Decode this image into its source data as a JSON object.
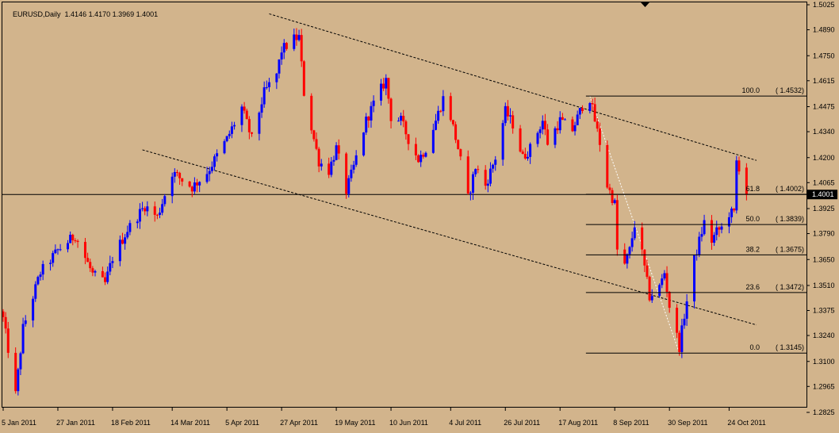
{
  "title": {
    "symbol": "EURUSD,Daily",
    "ohlc": "1.4146 1.4170 1.3969 1.4001"
  },
  "colors": {
    "background": "#d2b48c",
    "bull_candle": "#0000ff",
    "bear_candle": "#ff0000",
    "lines": "#000000",
    "fib_diagonal": "#ffffff"
  },
  "chart_data": {
    "type": "candlestick",
    "symbol": "EURUSD",
    "timeframe": "Daily",
    "last_bar": {
      "open": 1.4146,
      "high": 1.417,
      "low": 1.3969,
      "close": 1.4001
    },
    "current_price_label": "1.4001",
    "ylim": [
      1.2825,
      1.5025
    ],
    "y_ticks": [
      "1.5025",
      "1.4890",
      "1.4750",
      "1.4615",
      "1.4475",
      "1.4340",
      "1.4200",
      "1.4065",
      "1.3925",
      "1.3790",
      "1.3650",
      "1.3510",
      "1.3375",
      "1.3240",
      "1.3100",
      "1.2965",
      "1.2825"
    ],
    "x_ticks": [
      "5 Jan 2011",
      "27 Jan 2011",
      "18 Feb 2011",
      "14 Mar 2011",
      "5 Apr 2011",
      "27 Apr 2011",
      "19 May 2011",
      "10 Jun 2011",
      "4 Jul 2011",
      "26 Jul 2011",
      "17 Aug 2011",
      "8 Sep 2011",
      "30 Sep 2011",
      "24 Oct 2011"
    ],
    "price_path": [
      [
        "5 Jan 2011",
        1.333
      ],
      [
        "10 Jan 2011",
        1.292
      ],
      [
        "13 Jan 2011",
        1.328
      ],
      [
        "20 Jan 2011",
        1.358
      ],
      [
        "27 Jan 2011",
        1.37
      ],
      [
        "3 Feb 2011",
        1.378
      ],
      [
        "10 Feb 2011",
        1.357
      ],
      [
        "15 Feb 2011",
        1.352
      ],
      [
        "18 Feb 2011",
        1.366
      ],
      [
        "24 Feb 2011",
        1.381
      ],
      [
        "3 Mar 2011",
        1.394
      ],
      [
        "8 Mar 2011",
        1.388
      ],
      [
        "14 Mar 2011",
        1.412
      ],
      [
        "18 Mar 2011",
        1.408
      ],
      [
        "22 Mar 2011",
        1.404
      ],
      [
        "28 Mar 2011",
        1.412
      ],
      [
        "5 Apr 2011",
        1.43
      ],
      [
        "11 Apr 2011",
        1.447
      ],
      [
        "15 Apr 2011",
        1.43
      ],
      [
        "20 Apr 2011",
        1.455
      ],
      [
        "25 Apr 2011",
        1.465
      ],
      [
        "27 Apr 2011",
        1.478
      ],
      [
        "2 May 2011",
        1.484
      ],
      [
        "4 May 2011",
        1.485
      ],
      [
        "6 May 2011",
        1.455
      ],
      [
        "10 May 2011",
        1.43
      ],
      [
        "12 May 2011",
        1.418
      ],
      [
        "16 May 2011",
        1.413
      ],
      [
        "19 May 2011",
        1.425
      ],
      [
        "23 May 2011",
        1.402
      ],
      [
        "26 May 2011",
        1.415
      ],
      [
        "31 May 2011",
        1.44
      ],
      [
        "4 Jun 2011",
        1.452
      ],
      [
        "8 Jun 2011",
        1.462
      ],
      [
        "10 Jun 2011",
        1.442
      ],
      [
        "14 Jun 2011",
        1.44
      ],
      [
        "17 Jun 2011",
        1.43
      ],
      [
        "21 Jun 2011",
        1.419
      ],
      [
        "24 Jun 2011",
        1.425
      ],
      [
        "28 Jun 2011",
        1.44
      ],
      [
        "1 Jul 2011",
        1.452
      ],
      [
        "4 Jul 2011",
        1.442
      ],
      [
        "7 Jul 2011",
        1.425
      ],
      [
        "11 Jul 2011",
        1.398
      ],
      [
        "14 Jul 2011",
        1.415
      ],
      [
        "18 Jul 2011",
        1.405
      ],
      [
        "22 Jul 2011",
        1.42
      ],
      [
        "26 Jul 2011",
        1.445
      ],
      [
        "29 Jul 2011",
        1.438
      ],
      [
        "2 Aug 2011",
        1.42
      ],
      [
        "5 Aug 2011",
        1.425
      ],
      [
        "10 Aug 2011",
        1.44
      ],
      [
        "12 Aug 2011",
        1.428
      ],
      [
        "17 Aug 2011",
        1.44
      ],
      [
        "22 Aug 2011",
        1.435
      ],
      [
        "26 Aug 2011",
        1.448
      ],
      [
        "29 Aug 2011",
        1.452
      ],
      [
        "31 Aug 2011",
        1.44
      ],
      [
        "2 Sep 2011",
        1.428
      ],
      [
        "5 Sep 2011",
        1.405
      ],
      [
        "8 Sep 2011",
        1.395
      ],
      [
        "9 Sep 2011",
        1.37
      ],
      [
        "12 Sep 2011",
        1.362
      ],
      [
        "14 Sep 2011",
        1.37
      ],
      [
        "16 Sep 2011",
        1.384
      ],
      [
        "19 Sep 2011",
        1.368
      ],
      [
        "22 Sep 2011",
        1.345
      ],
      [
        "26 Sep 2011",
        1.35
      ],
      [
        "28 Sep 2011",
        1.358
      ],
      [
        "30 Sep 2011",
        1.34
      ],
      [
        "4 Oct 2011",
        1.318
      ],
      [
        "6 Oct 2011",
        1.335
      ],
      [
        "10 Oct 2011",
        1.365
      ],
      [
        "12 Oct 2011",
        1.375
      ],
      [
        "14 Oct 2011",
        1.385
      ],
      [
        "17 Oct 2011",
        1.375
      ],
      [
        "19 Oct 2011",
        1.38
      ],
      [
        "21 Oct 2011",
        1.382
      ],
      [
        "24 Oct 2011",
        1.39
      ],
      [
        "26 Oct 2011",
        1.39
      ],
      [
        "27 Oct 2011",
        1.418
      ],
      [
        "28 Oct 2011",
        1.415
      ],
      [
        "31 Oct 2011",
        1.4001
      ]
    ],
    "trendlines": [
      {
        "style": "dashed",
        "from": [
          "22 Apr 2011",
          1.4976
        ],
        "to": [
          "4 Nov 2011",
          1.4185
        ]
      },
      {
        "style": "dashed",
        "from": [
          "2 Mar 2011",
          1.4242
        ],
        "to": [
          "4 Nov 2011",
          1.3297
        ]
      }
    ],
    "fibonacci": {
      "start": [
        "29 Aug 2011",
        1.4532
      ],
      "end": [
        "4 Oct 2011",
        1.3145
      ],
      "levels": [
        {
          "level": "100.0",
          "price": "1.4532"
        },
        {
          "level": "61.8",
          "price": "1.4002"
        },
        {
          "level": "50.0",
          "price": "1.3839"
        },
        {
          "level": "38.2",
          "price": "1.3675"
        },
        {
          "level": "23.6",
          "price": "1.3472"
        },
        {
          "level": "0.0",
          "price": "1.3145"
        }
      ]
    },
    "horizontal_line": 1.4001
  }
}
